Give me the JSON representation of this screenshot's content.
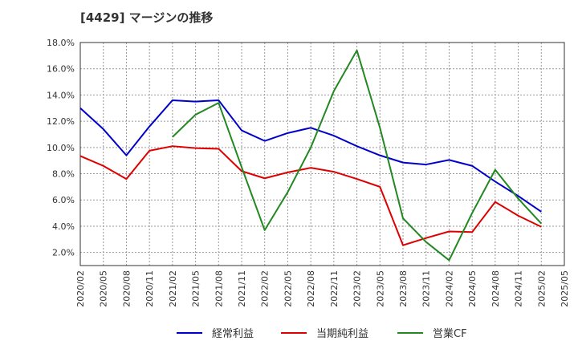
{
  "chart_data": {
    "type": "line",
    "title": "[4429]  マージンの推移",
    "xlabel": "",
    "ylabel": "",
    "ylim": [
      1.0,
      18.0
    ],
    "y_ticks": [
      "2.0%",
      "4.0%",
      "6.0%",
      "8.0%",
      "10.0%",
      "12.0%",
      "14.0%",
      "16.0%",
      "18.0%"
    ],
    "y_tick_values": [
      2,
      4,
      6,
      8,
      10,
      12,
      14,
      16,
      18
    ],
    "categories": [
      "2020/02",
      "2020/05",
      "2020/08",
      "2020/11",
      "2021/02",
      "2021/05",
      "2021/08",
      "2021/11",
      "2022/02",
      "2022/05",
      "2022/08",
      "2022/11",
      "2023/02",
      "2023/05",
      "2023/08",
      "2023/11",
      "2024/02",
      "2024/05",
      "2024/08",
      "2024/11",
      "2025/02",
      "2025/05"
    ],
    "grid": true,
    "legend_position": "bottom",
    "series": [
      {
        "name": "経常利益",
        "color": "#0000cc",
        "values": [
          13.0,
          11.4,
          9.4,
          11.6,
          13.6,
          13.5,
          13.6,
          11.3,
          10.5,
          11.1,
          11.5,
          10.9,
          10.1,
          9.4,
          8.85,
          8.7,
          9.05,
          8.6,
          7.4,
          6.3,
          5.1,
          null
        ]
      },
      {
        "name": "当期純利益",
        "color": "#dd0000",
        "values": [
          9.35,
          8.6,
          7.6,
          9.75,
          10.1,
          9.95,
          9.9,
          8.2,
          7.65,
          8.1,
          8.45,
          8.15,
          7.6,
          7.0,
          2.55,
          3.1,
          3.6,
          3.55,
          5.85,
          4.8,
          3.95,
          null
        ]
      },
      {
        "name": "営業CF",
        "color": "#228822",
        "values": [
          null,
          null,
          null,
          null,
          10.8,
          12.5,
          13.4,
          8.5,
          3.7,
          6.6,
          10.0,
          14.3,
          17.4,
          11.5,
          4.6,
          2.8,
          1.4,
          5.0,
          8.3,
          6.1,
          4.2,
          null
        ]
      }
    ]
  }
}
